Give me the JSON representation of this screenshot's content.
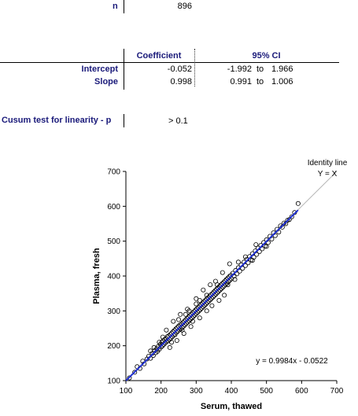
{
  "summary": {
    "n_label": "n",
    "n_value": "896"
  },
  "regression_table": {
    "headers": [
      "Coefficient",
      "95% CI"
    ],
    "rows": [
      {
        "label": "Intercept",
        "coefficient": "-0.052",
        "ci_low": "-1.992",
        "ci_sep": "to",
        "ci_high": "1.966"
      },
      {
        "label": "Slope",
        "coefficient": "0.998",
        "ci_low": "0.991",
        "ci_sep": "to",
        "ci_high": "1.006"
      }
    ]
  },
  "cusum": {
    "label": "Cusum test for linearity - p",
    "value": "> 0.1"
  },
  "chart_data": {
    "type": "scatter",
    "title": "",
    "xlabel": "Serum, thawed",
    "ylabel": "Plasma, fresh",
    "xlim": [
      100,
      700
    ],
    "ylim": [
      100,
      700
    ],
    "xticks": [
      100,
      200,
      300,
      400,
      500,
      600,
      700
    ],
    "yticks": [
      100,
      200,
      300,
      400,
      500,
      600,
      700
    ],
    "identity_label_line1": "Identity line",
    "identity_label_line2": "Y = X",
    "equation": "y = 0.9984x - 0.0522",
    "regression": {
      "slope": 0.9984,
      "intercept": -0.0522,
      "x_range": [
        100,
        590
      ]
    },
    "series": [
      {
        "points": [
          [
            110,
            108
          ],
          [
            125,
            124
          ],
          [
            132,
            140
          ],
          [
            140,
            135
          ],
          [
            148,
            156
          ],
          [
            152,
            148
          ],
          [
            160,
            162
          ],
          [
            165,
            170
          ],
          [
            170,
            164
          ],
          [
            175,
            178
          ],
          [
            178,
            172
          ],
          [
            182,
            186
          ],
          [
            185,
            180
          ],
          [
            188,
            192
          ],
          [
            190,
            184
          ],
          [
            192,
            198
          ],
          [
            195,
            190
          ],
          [
            198,
            204
          ],
          [
            200,
            196
          ],
          [
            202,
            210
          ],
          [
            204,
            200
          ],
          [
            206,
            214
          ],
          [
            208,
            204
          ],
          [
            210,
            218
          ],
          [
            212,
            208
          ],
          [
            214,
            220
          ],
          [
            216,
            212
          ],
          [
            218,
            226
          ],
          [
            220,
            214
          ],
          [
            222,
            228
          ],
          [
            224,
            218
          ],
          [
            226,
            232
          ],
          [
            228,
            222
          ],
          [
            230,
            236
          ],
          [
            232,
            226
          ],
          [
            234,
            240
          ],
          [
            236,
            230
          ],
          [
            238,
            244
          ],
          [
            240,
            232
          ],
          [
            242,
            248
          ],
          [
            244,
            238
          ],
          [
            246,
            252
          ],
          [
            248,
            242
          ],
          [
            250,
            256
          ],
          [
            252,
            246
          ],
          [
            254,
            260
          ],
          [
            256,
            248
          ],
          [
            258,
            262
          ],
          [
            260,
            252
          ],
          [
            262,
            266
          ],
          [
            264,
            256
          ],
          [
            266,
            270
          ],
          [
            268,
            260
          ],
          [
            270,
            274
          ],
          [
            272,
            264
          ],
          [
            274,
            278
          ],
          [
            276,
            268
          ],
          [
            278,
            282
          ],
          [
            280,
            272
          ],
          [
            282,
            286
          ],
          [
            284,
            276
          ],
          [
            286,
            290
          ],
          [
            288,
            280
          ],
          [
            290,
            294
          ],
          [
            292,
            284
          ],
          [
            294,
            298
          ],
          [
            296,
            288
          ],
          [
            298,
            302
          ],
          [
            300,
            292
          ],
          [
            302,
            306
          ],
          [
            304,
            296
          ],
          [
            306,
            310
          ],
          [
            308,
            300
          ],
          [
            310,
            314
          ],
          [
            312,
            304
          ],
          [
            314,
            318
          ],
          [
            316,
            308
          ],
          [
            318,
            322
          ],
          [
            320,
            312
          ],
          [
            322,
            326
          ],
          [
            324,
            316
          ],
          [
            326,
            330
          ],
          [
            328,
            320
          ],
          [
            330,
            334
          ],
          [
            332,
            324
          ],
          [
            334,
            338
          ],
          [
            336,
            328
          ],
          [
            338,
            342
          ],
          [
            340,
            332
          ],
          [
            342,
            346
          ],
          [
            344,
            336
          ],
          [
            346,
            350
          ],
          [
            348,
            340
          ],
          [
            350,
            354
          ],
          [
            352,
            344
          ],
          [
            354,
            358
          ],
          [
            356,
            348
          ],
          [
            358,
            362
          ],
          [
            360,
            352
          ],
          [
            362,
            366
          ],
          [
            364,
            356
          ],
          [
            366,
            370
          ],
          [
            368,
            360
          ],
          [
            370,
            374
          ],
          [
            372,
            364
          ],
          [
            374,
            378
          ],
          [
            376,
            368
          ],
          [
            378,
            382
          ],
          [
            380,
            372
          ],
          [
            382,
            386
          ],
          [
            384,
            376
          ],
          [
            386,
            390
          ],
          [
            388,
            380
          ],
          [
            390,
            394
          ],
          [
            392,
            384
          ],
          [
            394,
            398
          ],
          [
            396,
            388
          ],
          [
            398,
            402
          ],
          [
            400,
            392
          ],
          [
            404,
            408
          ],
          [
            408,
            400
          ],
          [
            412,
            416
          ],
          [
            416,
            406
          ],
          [
            420,
            424
          ],
          [
            424,
            414
          ],
          [
            428,
            432
          ],
          [
            432,
            422
          ],
          [
            436,
            440
          ],
          [
            440,
            430
          ],
          [
            444,
            448
          ],
          [
            448,
            438
          ],
          [
            452,
            456
          ],
          [
            456,
            446
          ],
          [
            460,
            464
          ],
          [
            464,
            454
          ],
          [
            468,
            472
          ],
          [
            472,
            462
          ],
          [
            476,
            480
          ],
          [
            480,
            470
          ],
          [
            484,
            488
          ],
          [
            488,
            478
          ],
          [
            492,
            496
          ],
          [
            496,
            486
          ],
          [
            500,
            504
          ],
          [
            505,
            496
          ],
          [
            510,
            514
          ],
          [
            515,
            506
          ],
          [
            520,
            524
          ],
          [
            525,
            516
          ],
          [
            530,
            534
          ],
          [
            535,
            526
          ],
          [
            540,
            544
          ],
          [
            545,
            540
          ],
          [
            550,
            552
          ],
          [
            555,
            550
          ],
          [
            560,
            560
          ],
          [
            565,
            562
          ],
          [
            572,
            570
          ],
          [
            580,
            582
          ],
          [
            590,
            608
          ],
          [
            215,
            245
          ],
          [
            225,
            195
          ],
          [
            235,
            270
          ],
          [
            245,
            215
          ],
          [
            255,
            290
          ],
          [
            265,
            235
          ],
          [
            275,
            305
          ],
          [
            285,
            255
          ],
          [
            300,
            335
          ],
          [
            310,
            280
          ],
          [
            320,
            360
          ],
          [
            330,
            300
          ],
          [
            340,
            375
          ],
          [
            345,
            315
          ],
          [
            355,
            385
          ],
          [
            365,
            330
          ],
          [
            375,
            410
          ],
          [
            380,
            345
          ],
          [
            390,
            375
          ],
          [
            395,
            435
          ],
          [
            330,
            345
          ],
          [
            360,
            375
          ],
          [
            410,
            390
          ],
          [
            420,
            440
          ],
          [
            440,
            455
          ],
          [
            460,
            445
          ],
          [
            470,
            490
          ],
          [
            500,
            485
          ],
          [
            300,
            320
          ],
          [
            280,
            300
          ],
          [
            230,
            210
          ],
          [
            205,
            225
          ],
          [
            195,
            210
          ],
          [
            180,
            195
          ],
          [
            170,
            185
          ],
          [
            250,
            275
          ],
          [
            260,
            245
          ],
          [
            270,
            290
          ],
          [
            290,
            270
          ],
          [
            310,
            330
          ]
        ]
      }
    ]
  }
}
